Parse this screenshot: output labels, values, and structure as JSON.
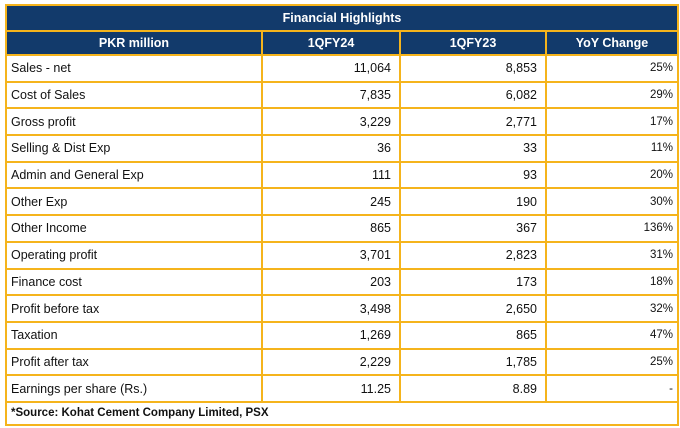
{
  "table": {
    "title": "Financial Highlights",
    "headers": [
      "PKR million",
      "1QFY24",
      "1QFY23",
      "YoY Change"
    ],
    "rows": [
      {
        "label": "Sales - net",
        "fy24": "11,064",
        "fy23": "8,853",
        "change": "25%"
      },
      {
        "label": "Cost of Sales",
        "fy24": "7,835",
        "fy23": "6,082",
        "change": "29%"
      },
      {
        "label": "Gross profit",
        "fy24": "3,229",
        "fy23": "2,771",
        "change": "17%"
      },
      {
        "label": "Selling & Dist Exp",
        "fy24": "36",
        "fy23": "33",
        "change": "11%"
      },
      {
        "label": "Admin and General Exp",
        "fy24": "111",
        "fy23": "93",
        "change": "20%"
      },
      {
        "label": "Other Exp",
        "fy24": "245",
        "fy23": "190",
        "change": "30%"
      },
      {
        "label": "Other Income",
        "fy24": "865",
        "fy23": "367",
        "change": "136%"
      },
      {
        "label": "Operating profit",
        "fy24": "3,701",
        "fy23": "2,823",
        "change": "31%"
      },
      {
        "label": "Finance cost",
        "fy24": "203",
        "fy23": "173",
        "change": "18%"
      },
      {
        "label": "Profit before tax",
        "fy24": "3,498",
        "fy23": "2,650",
        "change": "32%"
      },
      {
        "label": "Taxation",
        "fy24": "1,269",
        "fy23": "865",
        "change": "47%"
      },
      {
        "label": "Profit after tax",
        "fy24": "2,229",
        "fy23": "1,785",
        "change": "25%"
      },
      {
        "label": "Earnings per share (Rs.)",
        "fy24": "11.25",
        "fy23": "8.89",
        "change": "-"
      }
    ],
    "source": "*Source: Kohat Cement Company Limited, PSX"
  },
  "colors": {
    "header_bg": "#123a6b",
    "border": "#f5b41c"
  }
}
